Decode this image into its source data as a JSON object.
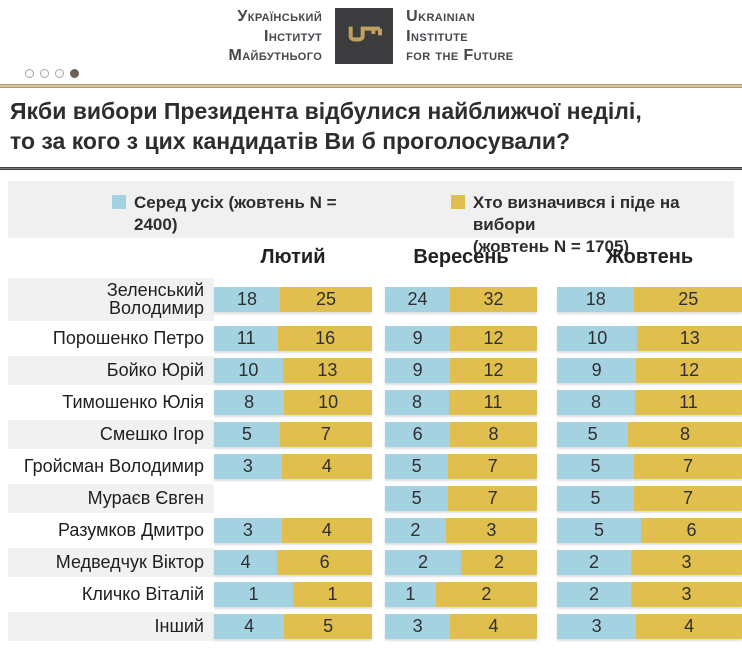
{
  "header": {
    "uk_lines": [
      "Український",
      "Інститут",
      "Майбутнього"
    ],
    "en_lines": [
      "Ukrainian",
      "Institute",
      "for the Future"
    ],
    "key_icon_color": "#bfa05e",
    "box_color": "#3c3c3e"
  },
  "pagination": {
    "dots_total": 4,
    "active_index": 3
  },
  "title": {
    "line1": "Якби вибори Президента відбулися найближчої неділі,",
    "line2": "то за кого з цих кандидатів Ви б проголосували?"
  },
  "legend": {
    "items": [
      {
        "color": "#a5d2e0",
        "line1": "Серед усіх (жовтень N = 2400)",
        "line2": ""
      },
      {
        "color": "#e0bf4f",
        "line1": "Хто визначився і піде на вибори",
        "line2": "(жовтень N = 1705)"
      }
    ]
  },
  "chart_data": {
    "type": "bar",
    "subtype": "paired-100pct-stacked",
    "columns": [
      "Лютий",
      "Вересень",
      "Жовтень"
    ],
    "series": [
      {
        "name": "Серед усіх (жовтень N = 2400)",
        "color": "#a5d2e0"
      },
      {
        "name": "Хто визначився і піде на вибори (жовтень N = 1705)",
        "color": "#e0bf4f"
      }
    ],
    "rows": [
      {
        "name": "Зеленський Володимир",
        "values": [
          [
            18,
            25
          ],
          [
            24,
            32
          ],
          [
            18,
            25
          ]
        ]
      },
      {
        "name": "Порошенко Петро",
        "values": [
          [
            11,
            16
          ],
          [
            9,
            12
          ],
          [
            10,
            13
          ]
        ]
      },
      {
        "name": "Бойко Юрій",
        "values": [
          [
            10,
            13
          ],
          [
            9,
            12
          ],
          [
            9,
            12
          ]
        ]
      },
      {
        "name": "Тимошенко Юлія",
        "values": [
          [
            8,
            10
          ],
          [
            8,
            11
          ],
          [
            8,
            11
          ]
        ]
      },
      {
        "name": "Смешко Ігор",
        "values": [
          [
            5,
            7
          ],
          [
            6,
            8
          ],
          [
            5,
            8
          ]
        ]
      },
      {
        "name": "Гройсман Володимир",
        "values": [
          [
            3,
            4
          ],
          [
            5,
            7
          ],
          [
            5,
            7
          ]
        ]
      },
      {
        "name": "Мураєв Євген",
        "values": [
          null,
          [
            5,
            7
          ],
          [
            5,
            7
          ]
        ]
      },
      {
        "name": "Разумков Дмитро",
        "values": [
          [
            3,
            4
          ],
          [
            2,
            3
          ],
          [
            5,
            6
          ]
        ]
      },
      {
        "name": "Медведчук Віктор",
        "values": [
          [
            4,
            6
          ],
          [
            2,
            2
          ],
          [
            2,
            3
          ]
        ]
      },
      {
        "name": "Кличко Віталій",
        "values": [
          [
            1,
            1
          ],
          [
            1,
            2
          ],
          [
            2,
            3
          ]
        ]
      },
      {
        "name": "Інший",
        "values": [
          [
            4,
            5
          ],
          [
            3,
            4
          ],
          [
            3,
            4
          ]
        ]
      }
    ]
  }
}
